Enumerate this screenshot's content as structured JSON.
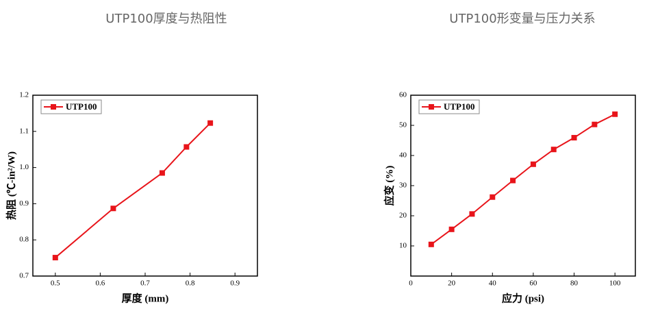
{
  "chart_data": [
    {
      "type": "line",
      "title": "UTP100厚度与热阻性",
      "x_label": "厚度 (mm)",
      "y_label": "热阻 (℃-in²/W)",
      "x": [
        0.5,
        0.629,
        0.738,
        0.792,
        0.845
      ],
      "series": [
        {
          "name": "UTP100",
          "color": "#e8141a",
          "values": [
            0.751,
            0.887,
            0.985,
            1.057,
            1.123
          ]
        }
      ],
      "xlim": [
        0.45,
        0.95
      ],
      "ylim": [
        0.7,
        1.2
      ],
      "xticks": [
        0.5,
        0.6,
        0.7,
        0.8,
        0.9
      ],
      "yticks": [
        0.7,
        0.8,
        0.9,
        {
          "value": 1,
          "label": "1.0"
        },
        1.1,
        1.2
      ],
      "legend": "top-left"
    },
    {
      "type": "line",
      "title": "UTP100形变量与压力关系",
      "x_label": "应力 (psi)",
      "y_label": "应变 (%)",
      "x": [
        10,
        20,
        30,
        40,
        50,
        60,
        70,
        80,
        90,
        100
      ],
      "series": [
        {
          "name": "UTP100",
          "color": "#e8141a",
          "values": [
            10.5,
            15.5,
            20.6,
            26.2,
            31.7,
            37.1,
            42,
            45.9,
            50.3,
            53.7
          ]
        }
      ],
      "xlim": [
        0,
        110
      ],
      "ylim": [
        0,
        60
      ],
      "xticks": [
        0,
        20,
        40,
        60,
        80,
        100
      ],
      "yticks": [
        10,
        20,
        30,
        40,
        50,
        60
      ],
      "legend": "top-left"
    }
  ]
}
